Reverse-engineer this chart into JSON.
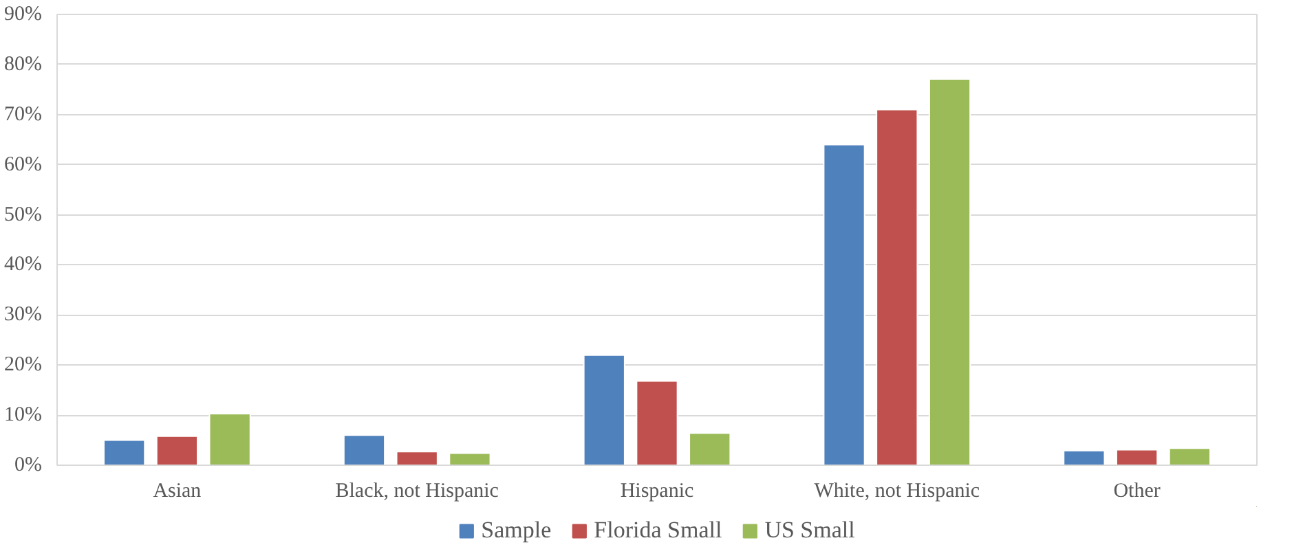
{
  "chart_data": {
    "type": "bar",
    "categories": [
      "Asian",
      "Black, not Hispanic",
      "Hispanic",
      "White, not Hispanic",
      "Other"
    ],
    "series": [
      {
        "name": "Sample",
        "color": "#4f81bd",
        "values": [
          5.0,
          6.0,
          22.0,
          64.0,
          2.9
        ]
      },
      {
        "name": "Florida Small",
        "color": "#c0504d",
        "values": [
          5.8,
          2.7,
          16.8,
          71.0,
          3.1
        ]
      },
      {
        "name": "US Small",
        "color": "#9bbb59",
        "values": [
          10.3,
          2.4,
          6.4,
          77.1,
          3.4
        ]
      }
    ],
    "ylim": [
      0,
      90
    ],
    "yticks": [
      {
        "value": 0,
        "label": "0%"
      },
      {
        "value": 10,
        "label": "10%"
      },
      {
        "value": 20,
        "label": "20%"
      },
      {
        "value": 30,
        "label": "30%"
      },
      {
        "value": 40,
        "label": "40%"
      },
      {
        "value": 50,
        "label": "50%"
      },
      {
        "value": 60,
        "label": "60%"
      },
      {
        "value": 70,
        "label": "70%"
      },
      {
        "value": 80,
        "label": "80%"
      },
      {
        "value": 90,
        "label": "90%"
      }
    ],
    "grid": "y",
    "legend": "bottom"
  }
}
